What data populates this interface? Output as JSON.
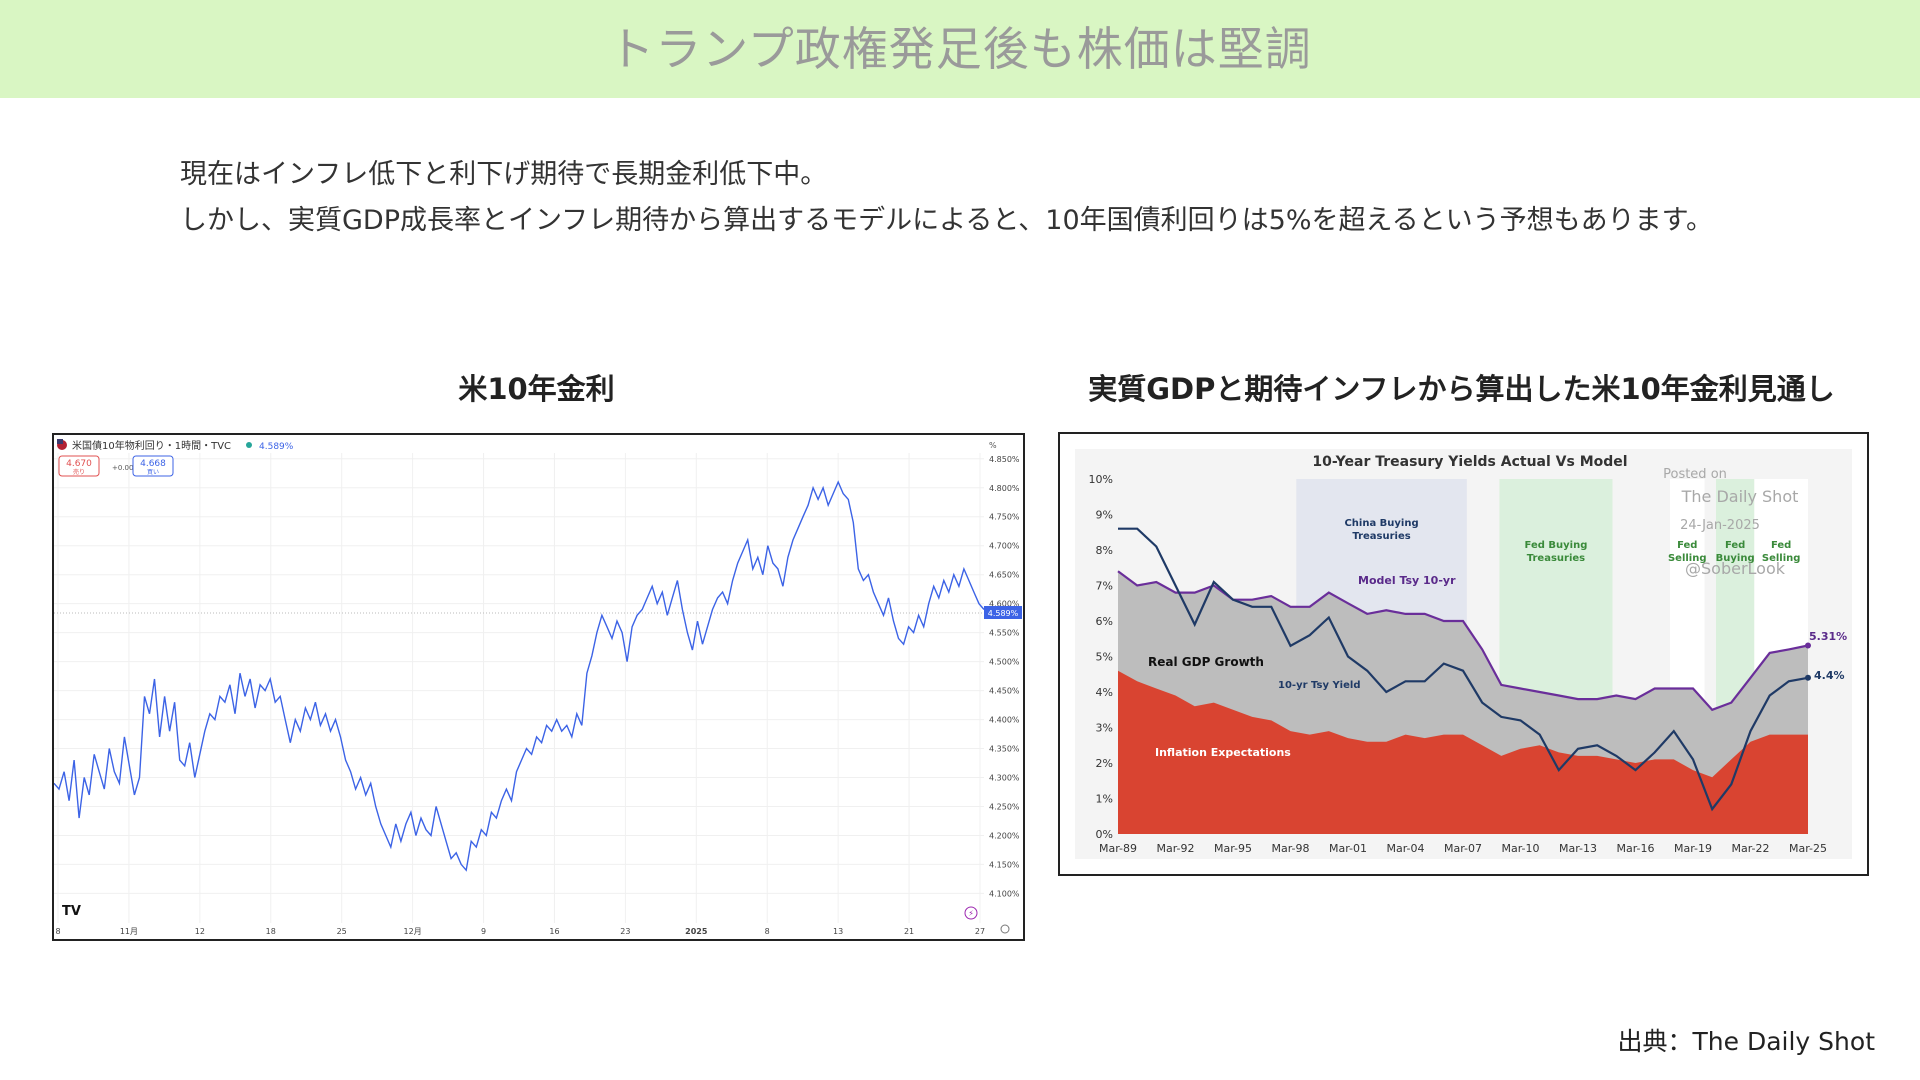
{
  "header": {
    "title": "トランプ政権発足後も株価は堅調"
  },
  "intro": {
    "line1": "現在はインフレ低下と利下げ期待で長期金利低下中。",
    "line2": "しかし、実質GDP成長率とインフレ期待から算出するモデルによると、10年国債利回りは5%を超えるという予想もあります。"
  },
  "left_title": "米10年金利",
  "right_title": "実質GDPと期待インフレから算出した米10年金利見通し",
  "source": "出典：The Daily Shot",
  "colors": {
    "header_bg": "#d9f6c3",
    "line": "#3c63e6",
    "inflation": "#d94431",
    "gdp": "#bdbdbd",
    "model": "#6a2e9a",
    "actual": "#1f3a66"
  },
  "chart_data": [
    {
      "type": "line",
      "title": "米国債10年物利回り・1時間・TVC",
      "header": {
        "current": "4.589%",
        "sell": "4.670",
        "sell_label": "売り",
        "change": "+0.003",
        "buy": "4.668",
        "buy_label": "買い",
        "unit": "%"
      },
      "last_label": "4.589%",
      "x_ticks": [
        "8",
        "11月",
        "12",
        "18",
        "25",
        "12月",
        "9",
        "16",
        "23",
        "2025",
        "8",
        "13",
        "21",
        "27"
      ],
      "y_ticks": [
        "4.850%",
        "4.800%",
        "4.750%",
        "4.700%",
        "4.650%",
        "4.600%",
        "4.550%",
        "4.500%",
        "4.450%",
        "4.400%",
        "4.350%",
        "4.300%",
        "4.250%",
        "4.200%",
        "4.150%",
        "4.100%"
      ],
      "ylim": [
        4.08,
        4.86
      ],
      "series": [
        {
          "values": [
            4.29,
            4.28,
            4.31,
            4.26,
            4.33,
            4.23,
            4.3,
            4.27,
            4.34,
            4.31,
            4.28,
            4.35,
            4.31,
            4.29,
            4.37,
            4.32,
            4.27,
            4.3,
            4.44,
            4.41,
            4.47,
            4.37,
            4.44,
            4.38,
            4.43,
            4.33,
            4.32,
            4.36,
            4.3,
            4.34,
            4.38,
            4.41,
            4.4,
            4.44,
            4.43,
            4.46,
            4.41,
            4.48,
            4.44,
            4.47,
            4.42,
            4.46,
            4.45,
            4.47,
            4.43,
            4.44,
            4.4,
            4.36,
            4.4,
            4.38,
            4.42,
            4.4,
            4.43,
            4.39,
            4.41,
            4.38,
            4.4,
            4.37,
            4.33,
            4.31,
            4.28,
            4.3,
            4.27,
            4.29,
            4.25,
            4.22,
            4.2,
            4.18,
            4.22,
            4.19,
            4.22,
            4.24,
            4.2,
            4.23,
            4.21,
            4.2,
            4.25,
            4.22,
            4.19,
            4.16,
            4.17,
            4.15,
            4.14,
            4.19,
            4.18,
            4.21,
            4.2,
            4.24,
            4.23,
            4.26,
            4.28,
            4.26,
            4.31,
            4.33,
            4.35,
            4.34,
            4.37,
            4.36,
            4.39,
            4.38,
            4.4,
            4.38,
            4.39,
            4.37,
            4.41,
            4.39,
            4.48,
            4.51,
            4.55,
            4.58,
            4.56,
            4.54,
            4.57,
            4.55,
            4.5,
            4.56,
            4.58,
            4.59,
            4.61,
            4.63,
            4.6,
            4.62,
            4.58,
            4.61,
            4.64,
            4.59,
            4.55,
            4.52,
            4.57,
            4.53,
            4.56,
            4.59,
            4.61,
            4.62,
            4.6,
            4.64,
            4.67,
            4.69,
            4.71,
            4.66,
            4.68,
            4.65,
            4.7,
            4.67,
            4.66,
            4.63,
            4.68,
            4.71,
            4.73,
            4.75,
            4.77,
            4.8,
            4.78,
            4.8,
            4.77,
            4.79,
            4.81,
            4.79,
            4.78,
            4.74,
            4.66,
            4.64,
            4.65,
            4.62,
            4.6,
            4.58,
            4.61,
            4.57,
            4.54,
            4.53,
            4.56,
            4.55,
            4.58,
            4.56,
            4.6,
            4.63,
            4.61,
            4.64,
            4.62,
            4.65,
            4.63,
            4.66,
            4.64,
            4.62,
            4.6,
            4.59
          ]
        }
      ]
    },
    {
      "type": "area",
      "title": "10-Year Treasury Yields Actual Vs Model",
      "watermark": [
        "Posted on",
        "The Daily Shot",
        "24-Jan-2025",
        "@SoberLook"
      ],
      "x": [
        "Mar-89",
        "Mar-92",
        "Mar-95",
        "Mar-98",
        "Mar-01",
        "Mar-04",
        "Mar-07",
        "Mar-10",
        "Mar-13",
        "Mar-16",
        "Mar-19",
        "Mar-22",
        "Mar-25"
      ],
      "y_ticks": [
        "10%",
        "9%",
        "8%",
        "7%",
        "6%",
        "5%",
        "4%",
        "3%",
        "2%",
        "1%",
        "0%"
      ],
      "ylim": [
        0,
        10
      ],
      "shaded_periods": [
        {
          "label_lines": [
            "China Buying",
            "Treasuries"
          ],
          "start": 1998.3,
          "end": 2007.2,
          "color": "#e3e6ef"
        },
        {
          "label_lines": [
            "Fed Buying",
            "Treasuries"
          ],
          "start": 2008.9,
          "end": 2014.8,
          "color": "#dbf0dd"
        },
        {
          "label_lines": [
            "Fed",
            "Selling"
          ],
          "start": 2017.8,
          "end": 2019.6,
          "color": "#ffffff"
        },
        {
          "label_lines": [
            "Fed",
            "Buying"
          ],
          "start": 2020.2,
          "end": 2022.2,
          "color": "#dbf0dd"
        },
        {
          "label_lines": [
            "Fed",
            "Selling"
          ],
          "start": 2022.2,
          "end": 2025.0,
          "color": "#ffffff"
        }
      ],
      "annotations": [
        "Real GDP Growth",
        "Inflation Expectations",
        "Model Tsy 10-yr",
        "10-yr Tsy Yield",
        "5.31%",
        "4.4%"
      ],
      "series": [
        {
          "name": "Inflation Expectations",
          "x": [
            1989,
            1990,
            1991,
            1992,
            1993,
            1994,
            1995,
            1996,
            1997,
            1998,
            1999,
            2000,
            2001,
            2002,
            2003,
            2004,
            2005,
            2006,
            2007,
            2008,
            2009,
            2010,
            2011,
            2012,
            2013,
            2014,
            2015,
            2016,
            2017,
            2018,
            2019,
            2020,
            2021,
            2022,
            2023,
            2024,
            2025
          ],
          "values": [
            4.6,
            4.3,
            4.1,
            3.9,
            3.6,
            3.7,
            3.5,
            3.3,
            3.2,
            2.9,
            2.8,
            2.9,
            2.7,
            2.6,
            2.6,
            2.8,
            2.7,
            2.8,
            2.8,
            2.5,
            2.2,
            2.4,
            2.5,
            2.3,
            2.2,
            2.2,
            2.1,
            2.0,
            2.1,
            2.1,
            1.8,
            1.6,
            2.1,
            2.6,
            2.8,
            2.8,
            2.8
          ]
        },
        {
          "name": "Real GDP Growth",
          "x": [
            1989,
            1990,
            1991,
            1992,
            1993,
            1994,
            1995,
            1996,
            1997,
            1998,
            1999,
            2000,
            2001,
            2002,
            2003,
            2004,
            2005,
            2006,
            2007,
            2008,
            2009,
            2010,
            2011,
            2012,
            2013,
            2014,
            2015,
            2016,
            2017,
            2018,
            2019,
            2020,
            2021,
            2022,
            2023,
            2024,
            2025
          ],
          "values": [
            2.8,
            2.7,
            3.0,
            2.9,
            3.2,
            3.3,
            3.1,
            3.3,
            3.5,
            3.5,
            3.6,
            3.9,
            3.8,
            3.6,
            3.7,
            3.4,
            3.5,
            3.2,
            3.2,
            2.7,
            2.0,
            1.7,
            1.5,
            1.6,
            1.6,
            1.6,
            1.8,
            1.8,
            2.0,
            2.0,
            2.3,
            1.9,
            1.6,
            1.8,
            2.3,
            2.4,
            2.5
          ]
        },
        {
          "name": "Model Tsy 10-yr",
          "x": [
            1989,
            1990,
            1991,
            1992,
            1993,
            1994,
            1995,
            1996,
            1997,
            1998,
            1999,
            2000,
            2001,
            2002,
            2003,
            2004,
            2005,
            2006,
            2007,
            2008,
            2009,
            2010,
            2011,
            2012,
            2013,
            2014,
            2015,
            2016,
            2017,
            2018,
            2019,
            2020,
            2021,
            2022,
            2023,
            2024,
            2025
          ],
          "values": [
            7.4,
            7.0,
            7.1,
            6.8,
            6.8,
            7.0,
            6.6,
            6.6,
            6.7,
            6.4,
            6.4,
            6.8,
            6.5,
            6.2,
            6.3,
            6.2,
            6.2,
            6.0,
            6.0,
            5.2,
            4.2,
            4.1,
            4.0,
            3.9,
            3.8,
            3.8,
            3.9,
            3.8,
            4.1,
            4.1,
            4.1,
            3.5,
            3.7,
            4.4,
            5.1,
            5.2,
            5.31
          ]
        },
        {
          "name": "10-yr Tsy Yield",
          "x": [
            1989,
            1990,
            1991,
            1992,
            1993,
            1994,
            1995,
            1996,
            1997,
            1998,
            1999,
            2000,
            2001,
            2002,
            2003,
            2004,
            2005,
            2006,
            2007,
            2008,
            2009,
            2010,
            2011,
            2012,
            2013,
            2014,
            2015,
            2016,
            2017,
            2018,
            2019,
            2020,
            2021,
            2022,
            2023,
            2024,
            2025
          ],
          "values": [
            8.6,
            8.6,
            8.1,
            7.0,
            5.9,
            7.1,
            6.6,
            6.4,
            6.4,
            5.3,
            5.6,
            6.1,
            5.0,
            4.6,
            4.0,
            4.3,
            4.3,
            4.8,
            4.6,
            3.7,
            3.3,
            3.2,
            2.8,
            1.8,
            2.4,
            2.5,
            2.2,
            1.8,
            2.3,
            2.9,
            2.1,
            0.7,
            1.4,
            2.9,
            3.9,
            4.3,
            4.4
          ]
        }
      ]
    }
  ]
}
